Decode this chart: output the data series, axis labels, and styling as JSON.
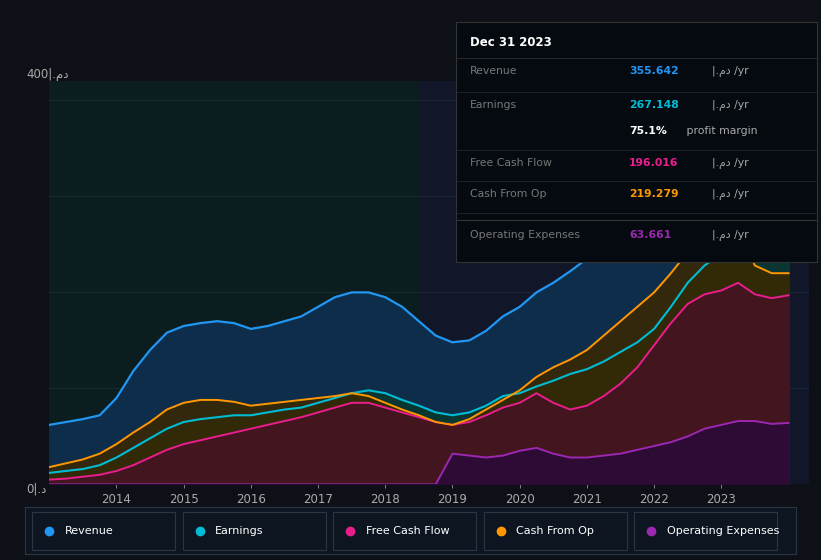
{
  "background_color": "#0d1117",
  "chart_bg": "#0a1628",
  "grid_color": "#1e2d40",
  "text_color": "#aaaaaa",
  "years": [
    2013.0,
    2013.25,
    2013.5,
    2013.75,
    2014.0,
    2014.25,
    2014.5,
    2014.75,
    2015.0,
    2015.25,
    2015.5,
    2015.75,
    2016.0,
    2016.25,
    2016.5,
    2016.75,
    2017.0,
    2017.25,
    2017.5,
    2017.75,
    2018.0,
    2018.25,
    2018.5,
    2018.75,
    2019.0,
    2019.25,
    2019.5,
    2019.75,
    2020.0,
    2020.25,
    2020.5,
    2020.75,
    2021.0,
    2021.25,
    2021.5,
    2021.75,
    2022.0,
    2022.25,
    2022.5,
    2022.75,
    2023.0,
    2023.25,
    2023.5,
    2023.75,
    2024.0
  ],
  "revenue": [
    62,
    65,
    68,
    72,
    90,
    118,
    140,
    158,
    165,
    168,
    170,
    168,
    162,
    165,
    170,
    175,
    185,
    195,
    200,
    200,
    195,
    185,
    170,
    155,
    148,
    150,
    160,
    175,
    185,
    200,
    210,
    222,
    235,
    245,
    255,
    262,
    272,
    295,
    318,
    330,
    342,
    355,
    370,
    360,
    356
  ],
  "earnings": [
    12,
    14,
    16,
    20,
    28,
    38,
    48,
    58,
    65,
    68,
    70,
    72,
    72,
    75,
    78,
    80,
    85,
    90,
    95,
    98,
    95,
    88,
    82,
    75,
    72,
    75,
    82,
    92,
    95,
    102,
    108,
    115,
    120,
    128,
    138,
    148,
    162,
    185,
    210,
    228,
    240,
    255,
    270,
    265,
    268
  ],
  "free_cash_flow": [
    5,
    6,
    8,
    10,
    14,
    20,
    28,
    36,
    42,
    46,
    50,
    54,
    58,
    62,
    66,
    70,
    75,
    80,
    85,
    85,
    80,
    75,
    70,
    65,
    62,
    65,
    72,
    80,
    85,
    95,
    85,
    78,
    82,
    92,
    105,
    122,
    145,
    168,
    188,
    198,
    202,
    210,
    198,
    194,
    197
  ],
  "cash_from_op": [
    18,
    22,
    26,
    32,
    42,
    54,
    65,
    78,
    85,
    88,
    88,
    86,
    82,
    84,
    86,
    88,
    90,
    92,
    95,
    92,
    85,
    78,
    72,
    65,
    62,
    68,
    78,
    88,
    98,
    112,
    122,
    130,
    140,
    155,
    170,
    185,
    200,
    220,
    242,
    252,
    258,
    265,
    228,
    220,
    220
  ],
  "op_expenses": [
    0,
    0,
    0,
    0,
    0,
    0,
    0,
    0,
    0,
    0,
    0,
    0,
    0,
    0,
    0,
    0,
    0,
    0,
    0,
    0,
    0,
    0,
    0,
    0,
    32,
    30,
    28,
    30,
    35,
    38,
    32,
    28,
    28,
    30,
    32,
    36,
    40,
    44,
    50,
    58,
    62,
    66,
    66,
    63,
    64
  ],
  "revenue_color": "#2196f3",
  "earnings_color": "#00bcd4",
  "fcf_color": "#e91e8c",
  "cashop_color": "#ff9800",
  "opexp_color": "#9c27b0",
  "revenue_fill": "#0d2d4a",
  "earnings_fill": "#0a3830",
  "fcf_fill": "#4a0d2a",
  "cashop_fill": "#3a2800",
  "opexp_fill": "#2a0a3a",
  "x_ticks": [
    2014,
    2015,
    2016,
    2017,
    2018,
    2019,
    2020,
    2021,
    2022,
    2023
  ],
  "ylim": [
    0,
    420
  ],
  "xlim": [
    2013.0,
    2024.3
  ],
  "info_box_bg": "#050a10",
  "info_box_border": "#333333",
  "legend_bg": "#0d1520",
  "legend_border": "#2a3545"
}
